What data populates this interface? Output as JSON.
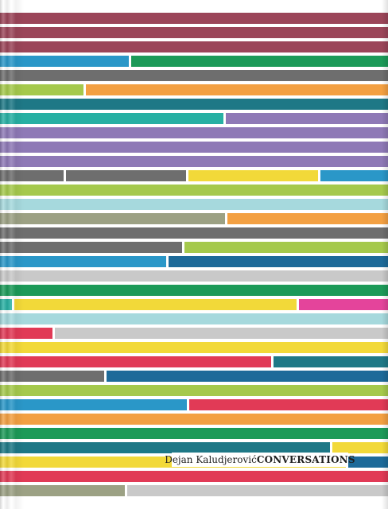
{
  "cover": {
    "author": "Dejan Kaludjerović",
    "title": "CONVERSATIONS"
  },
  "colors": {
    "maroon": "#9b4559",
    "blue": "#2a97c8",
    "green": "#1c9a58",
    "gray": "#6e6e6e",
    "lime": "#a5c94c",
    "orange": "#f3a042",
    "teal": "#1e7886",
    "turquoise": "#27b0a3",
    "purple": "#8e79b6",
    "yellow": "#f2d939",
    "lightblue": "#a6d9dd",
    "olive": "#9ca184",
    "darkblue": "#1d6a99",
    "silver": "#c9c9c9",
    "pink": "#e4449b",
    "red": "#e13a56"
  },
  "stripes": [
    [
      {
        "c": "maroon",
        "w": 1
      }
    ],
    [
      {
        "c": "maroon",
        "w": 1
      }
    ],
    [
      {
        "c": "maroon",
        "w": 1
      }
    ],
    [
      {
        "c": "blue",
        "w": 165
      },
      {
        "c": "green",
        "w": 323
      }
    ],
    [
      {
        "c": "gray",
        "w": 1
      }
    ],
    [
      {
        "c": "lime",
        "w": 108
      },
      {
        "c": "orange",
        "w": 380
      }
    ],
    [
      {
        "c": "teal",
        "w": 1
      }
    ],
    [
      {
        "c": "turquoise",
        "w": 284
      },
      {
        "c": "purple",
        "w": 204
      }
    ],
    [
      {
        "c": "purple",
        "w": 1
      }
    ],
    [
      {
        "c": "purple",
        "w": 1
      }
    ],
    [
      {
        "c": "purple",
        "w": 1
      }
    ],
    [
      {
        "c": "gray",
        "w": 83
      },
      {
        "c": "gray",
        "w": 154
      },
      {
        "c": "yellow",
        "w": 166
      },
      {
        "c": "blue",
        "w": 85
      }
    ],
    [
      {
        "c": "lime",
        "w": 1
      }
    ],
    [
      {
        "c": "lightblue",
        "w": 1
      }
    ],
    [
      {
        "c": "olive",
        "w": 286
      },
      {
        "c": "orange",
        "w": 202
      }
    ],
    [
      {
        "c": "gray",
        "w": 1
      }
    ],
    [
      {
        "c": "gray",
        "w": 232
      },
      {
        "c": "lime",
        "w": 256
      }
    ],
    [
      {
        "c": "blue",
        "w": 212
      },
      {
        "c": "darkblue",
        "w": 276
      }
    ],
    [
      {
        "c": "silver",
        "w": 1
      }
    ],
    [
      {
        "c": "green",
        "w": 1
      }
    ],
    [
      {
        "c": "turquoise",
        "w": 18
      },
      {
        "c": "yellow",
        "w": 358
      },
      {
        "c": "pink",
        "w": 112
      }
    ],
    [
      {
        "c": "lightblue",
        "w": 1
      }
    ],
    [
      {
        "c": "red",
        "w": 69
      },
      {
        "c": "silver",
        "w": 419
      }
    ],
    [
      {
        "c": "yellow",
        "w": 1
      }
    ],
    [
      {
        "c": "red",
        "w": 344
      },
      {
        "c": "teal",
        "w": 144
      }
    ],
    [
      {
        "c": "gray",
        "w": 134
      },
      {
        "c": "darkblue",
        "w": 354
      }
    ],
    [
      {
        "c": "lime",
        "w": 1
      }
    ],
    [
      {
        "c": "blue",
        "w": 238
      },
      {
        "c": "red",
        "w": 250
      }
    ],
    [
      {
        "c": "orange",
        "w": 1
      }
    ],
    [
      {
        "c": "green",
        "w": 1
      }
    ],
    [
      {
        "c": "teal",
        "w": 418
      },
      {
        "c": "yellow",
        "w": 70
      }
    ],
    [
      {
        "c": "yellow",
        "w": 438
      },
      {
        "c": "darkblue",
        "w": 50
      }
    ],
    [
      {
        "c": "red",
        "w": 1
      }
    ],
    [
      {
        "c": "olive",
        "w": 160
      },
      {
        "c": "silver",
        "w": 328
      }
    ]
  ]
}
